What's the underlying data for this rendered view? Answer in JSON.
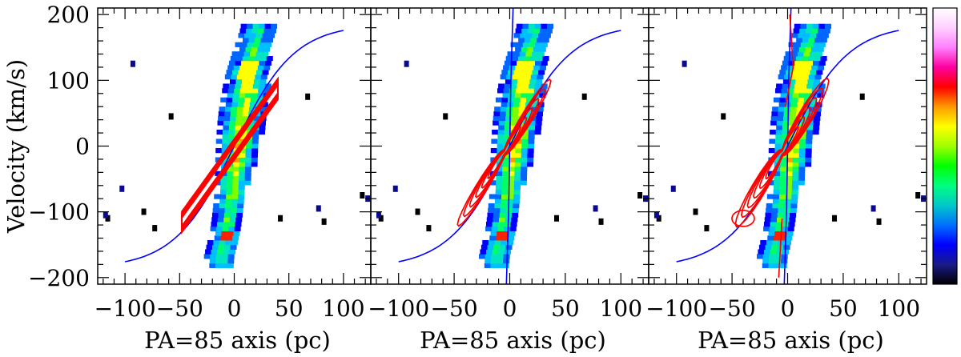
{
  "chart_data": {
    "type": "heatmap",
    "panels": [
      {
        "name": "panel-1",
        "contours": "model-small"
      },
      {
        "name": "panel-2",
        "contours": "model-wide"
      },
      {
        "name": "panel-3",
        "contours": "model-wide-extended"
      }
    ],
    "xlabel": "PA=85 axis (pc)",
    "ylabel": "Velocity (km/s)",
    "xlim": [
      -125,
      125
    ],
    "ylim": [
      -210,
      210
    ],
    "x_ticks": [
      -100,
      -50,
      0,
      50,
      100
    ],
    "x_tick_labels": [
      "−100",
      "−50",
      "0",
      "50",
      "100"
    ],
    "y_ticks": [
      200,
      100,
      0,
      -100,
      -200
    ],
    "y_tick_labels": [
      "200",
      "100",
      "0",
      "−100",
      "−200"
    ],
    "rotation_curve": {
      "x": [
        -100,
        -75,
        -50,
        -25,
        0,
        25,
        50,
        75,
        100
      ],
      "y": [
        -180,
        -155,
        -115,
        -60,
        0,
        60,
        115,
        155,
        180
      ]
    },
    "vertical_curve": {
      "x": [
        -3,
        -1,
        0,
        1,
        3
      ],
      "y": [
        -210,
        -100,
        0,
        100,
        210
      ]
    },
    "emission_band": {
      "center_x": [
        -15,
        -10,
        -5,
        0,
        5,
        10,
        15,
        20
      ],
      "v": [
        -170,
        -130,
        -80,
        -20,
        40,
        100,
        140,
        175
      ]
    },
    "colorbar": {
      "colors": [
        "#000000",
        "#1a1a8a",
        "#0000ff",
        "#0070ff",
        "#00c8c8",
        "#00ff80",
        "#00ff00",
        "#a0ff00",
        "#ffff00",
        "#ff9900",
        "#ff0000",
        "#ff00a0",
        "#ff80ff",
        "#ffd0ff",
        "#ffffff"
      ]
    },
    "colors": {
      "curve": "#0000ff",
      "contour": "#ff0000"
    }
  }
}
